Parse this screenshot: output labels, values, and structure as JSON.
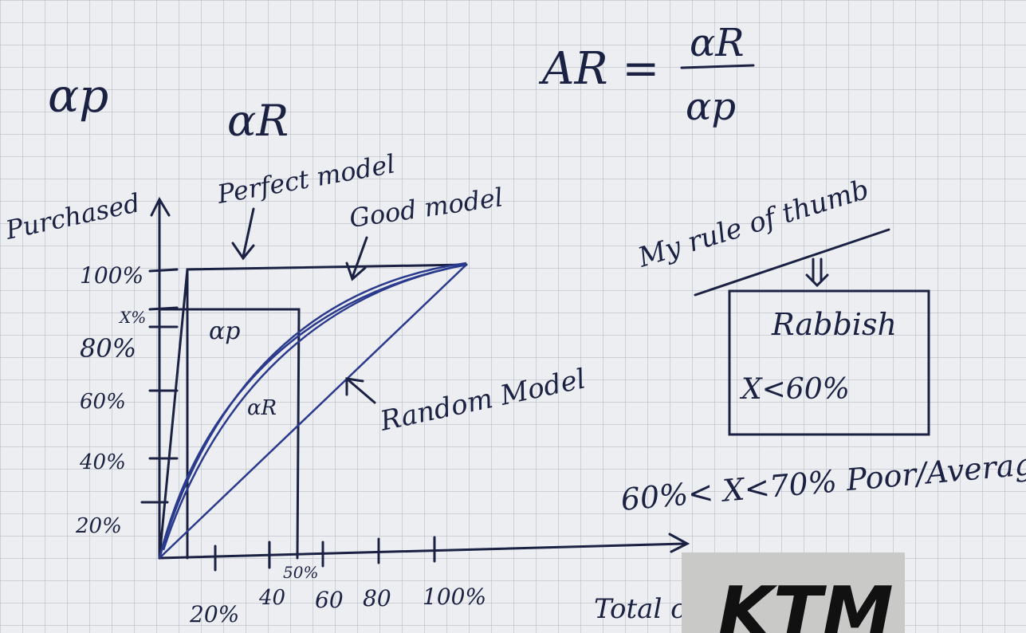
{
  "notes": {
    "left_symbol": "αp",
    "right_symbol": "αR"
  },
  "formula": {
    "lhs": "AR =",
    "numerator": "αR",
    "denominator": "αp"
  },
  "sketch": {
    "y_label": "Purchased",
    "x_label": "Total cont",
    "y_ticks": [
      "100%",
      "X%",
      "80%",
      "60%",
      "40%",
      "20%"
    ],
    "x_ticks": [
      "20%",
      "40",
      "50%",
      "60",
      "80",
      "100%"
    ],
    "area_labels": [
      "αp",
      "αR"
    ],
    "curve_labels": {
      "perfect": "Perfect model",
      "good": "Good model",
      "random": "Random Model"
    }
  },
  "rule": {
    "title": "My rule of thumb",
    "box_title": "Rabbish",
    "box_condition": "X<60%",
    "second": "60%< X<70% Poor/Averag"
  },
  "logo": "KTM"
}
